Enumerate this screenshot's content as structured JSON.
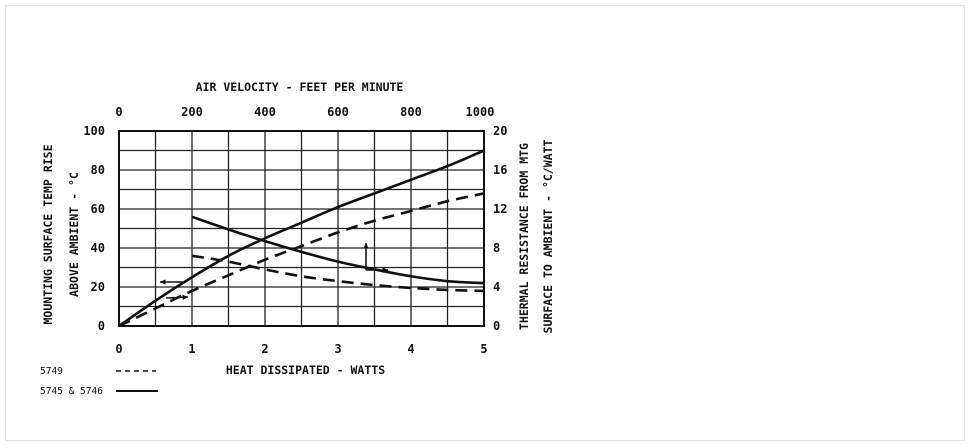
{
  "chart_data": {
    "type": "line",
    "top_axis": {
      "label": "AIR VELOCITY - FEET PER MINUTE",
      "ticks": [
        "0",
        "200",
        "400",
        "600",
        "800",
        "1000"
      ],
      "range": [
        0,
        1000
      ]
    },
    "bottom_axis": {
      "label": "HEAT DISSIPATED - WATTS",
      "ticks": [
        "0",
        "1",
        "2",
        "3",
        "4",
        "5"
      ],
      "range": [
        0,
        5
      ]
    },
    "left_axis": {
      "label_line1": "MOUNTING SURFACE TEMP RISE",
      "label_line2": "ABOVE AMBIENT - °C",
      "ticks": [
        "0",
        "20",
        "40",
        "60",
        "80",
        "100"
      ],
      "range": [
        0,
        100
      ]
    },
    "right_axis": {
      "label_line1": "THERMAL RESISTANCE FROM MTG",
      "label_line2": "SURFACE TO AMBIENT - °C/WATT",
      "ticks": [
        "0",
        "4",
        "8",
        "12",
        "16",
        "20"
      ],
      "range": [
        0,
        20
      ]
    },
    "grid": true,
    "legend": [
      {
        "label": "5749",
        "style": "dashed"
      },
      {
        "label": "5745 & 5746",
        "style": "solid"
      }
    ],
    "series": [
      {
        "label": "5745 & 5746",
        "style": "solid",
        "x_axis": "bottom",
        "y_axis": "left",
        "points": [
          [
            0,
            0
          ],
          [
            0.5,
            13
          ],
          [
            1,
            25
          ],
          [
            1.5,
            36
          ],
          [
            2,
            45
          ],
          [
            2.5,
            53
          ],
          [
            3,
            61
          ],
          [
            3.5,
            68
          ],
          [
            4,
            75
          ],
          [
            4.5,
            82
          ],
          [
            5,
            90
          ]
        ]
      },
      {
        "label": "5749",
        "style": "dashed",
        "x_axis": "bottom",
        "y_axis": "left",
        "points": [
          [
            0,
            0
          ],
          [
            0.5,
            9
          ],
          [
            1,
            18
          ],
          [
            1.5,
            26
          ],
          [
            2,
            34
          ],
          [
            2.5,
            41
          ],
          [
            3,
            48
          ],
          [
            3.5,
            54
          ],
          [
            4,
            59
          ],
          [
            4.5,
            64
          ],
          [
            5,
            68
          ]
        ]
      },
      {
        "label": "5745 & 5746",
        "style": "solid",
        "x_axis": "top",
        "y_axis": "right",
        "points": [
          [
            200,
            11.2
          ],
          [
            300,
            9.9
          ],
          [
            400,
            8.7
          ],
          [
            500,
            7.6
          ],
          [
            600,
            6.6
          ],
          [
            700,
            5.8
          ],
          [
            800,
            5.1
          ],
          [
            900,
            4.6
          ],
          [
            1000,
            4.4
          ]
        ]
      },
      {
        "label": "5749",
        "style": "dashed",
        "x_axis": "top",
        "y_axis": "right",
        "points": [
          [
            200,
            7.2
          ],
          [
            300,
            6.6
          ],
          [
            400,
            5.8
          ],
          [
            500,
            5.1
          ],
          [
            600,
            4.6
          ],
          [
            700,
            4.2
          ],
          [
            800,
            3.9
          ],
          [
            900,
            3.7
          ],
          [
            1000,
            3.6
          ]
        ]
      }
    ]
  }
}
